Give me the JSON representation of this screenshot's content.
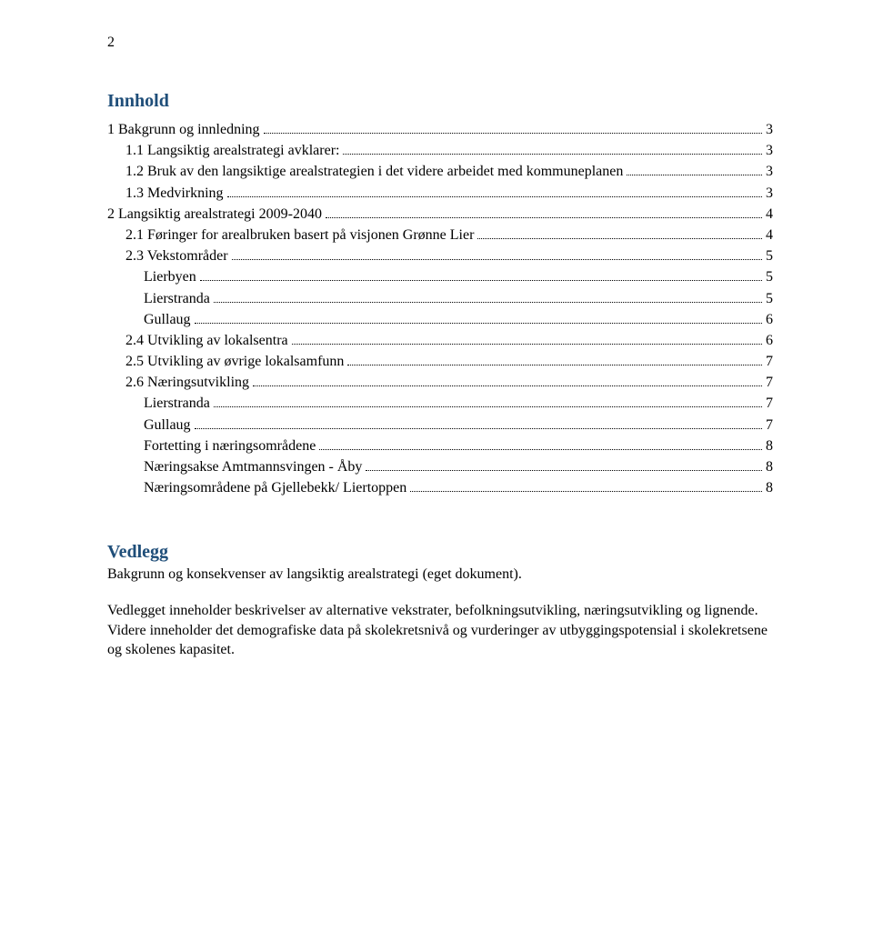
{
  "page_number": "2",
  "heading_innhold": "Innhold",
  "heading_vedlegg": "Vedlegg",
  "colors": {
    "heading": "#1f4e79",
    "text": "#000000",
    "background": "#ffffff",
    "leader": "#000000"
  },
  "fonts": {
    "body_family": "Times New Roman",
    "heading_size_pt": 15,
    "body_size_pt": 12
  },
  "toc": [
    {
      "label": "1 Bakgrunn og innledning",
      "page": "3",
      "indent": 0
    },
    {
      "label": "1.1 Langsiktig arealstrategi avklarer:",
      "page": "3",
      "indent": 1
    },
    {
      "label": "1.2 Bruk av den langsiktige arealstrategien i det videre arbeidet med kommuneplanen",
      "page": "3",
      "indent": 1
    },
    {
      "label": "1.3 Medvirkning",
      "page": "3",
      "indent": 1
    },
    {
      "label": "2 Langsiktig arealstrategi 2009-2040",
      "page": "4",
      "indent": 0
    },
    {
      "label": "2.1 Føringer for arealbruken basert på visjonen Grønne Lier",
      "page": "4",
      "indent": 1
    },
    {
      "label": "2.3 Vekstområder",
      "page": "5",
      "indent": 1
    },
    {
      "label": "Lierbyen",
      "page": "5",
      "indent": 2
    },
    {
      "label": "Lierstranda",
      "page": "5",
      "indent": 2
    },
    {
      "label": "Gullaug",
      "page": "6",
      "indent": 2
    },
    {
      "label": "2.4 Utvikling av lokalsentra",
      "page": "6",
      "indent": 1
    },
    {
      "label": "2.5 Utvikling av øvrige lokalsamfunn",
      "page": "7",
      "indent": 1
    },
    {
      "label": "2.6 Næringsutvikling",
      "page": "7",
      "indent": 1
    },
    {
      "label": "Lierstranda",
      "page": "7",
      "indent": 2
    },
    {
      "label": "Gullaug",
      "page": "7",
      "indent": 2
    },
    {
      "label": "Fortetting i næringsområdene",
      "page": "8",
      "indent": 2
    },
    {
      "label": "Næringsakse Amtmannsvingen - Åby",
      "page": "8",
      "indent": 2
    },
    {
      "label": "Næringsområdene på Gjellebekk/ Liertoppen",
      "page": "8",
      "indent": 2
    }
  ],
  "vedlegg_intro": "Bakgrunn og konsekvenser av langsiktig arealstrategi (eget dokument).",
  "vedlegg_body": "Vedlegget inneholder beskrivelser av alternative vekstrater, befolkningsutvikling, næringsutvikling og lignende. Videre inneholder det demografiske data på skolekretsnivå og vurderinger av utbyggingspotensial i skolekretsene og skolenes kapasitet."
}
